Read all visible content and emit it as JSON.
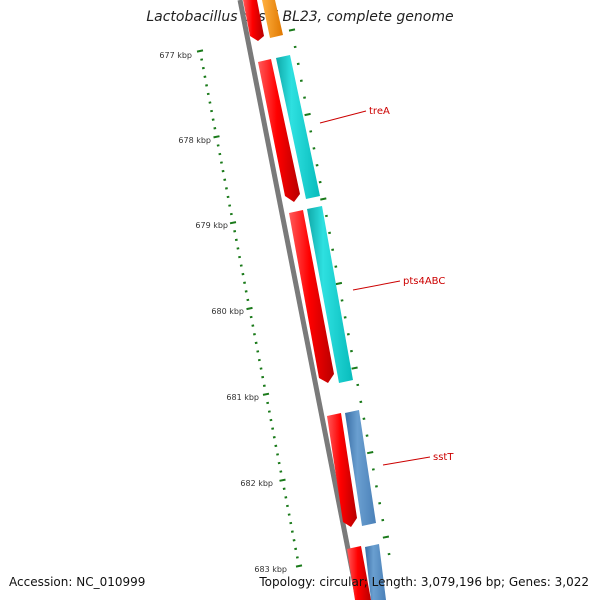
{
  "header": {
    "title": "Lactobacillus casei BL23, complete genome"
  },
  "footer": {
    "accession": "Accession: NC_010999",
    "stats": "Topology: circular; Length: 3,079,196 bp; Genes: 3,022"
  },
  "ruler": {
    "tick_labels": [
      "677 kbp",
      "678 kbp",
      "679 kbp",
      "680 kbp",
      "681 kbp",
      "682 kbp",
      "683 kbp"
    ],
    "tick_color": "#1a7a1a"
  },
  "gene_labels": [
    "treA",
    "pts4ABC",
    "sstT"
  ],
  "colors": {
    "backbone": "#7a7a7a",
    "red_track": "#ee0000",
    "cyan_track": "#1ac8c8",
    "blue_track": "#4a80b8",
    "orange_track": "#f08c00",
    "label_red": "#cc0000"
  }
}
